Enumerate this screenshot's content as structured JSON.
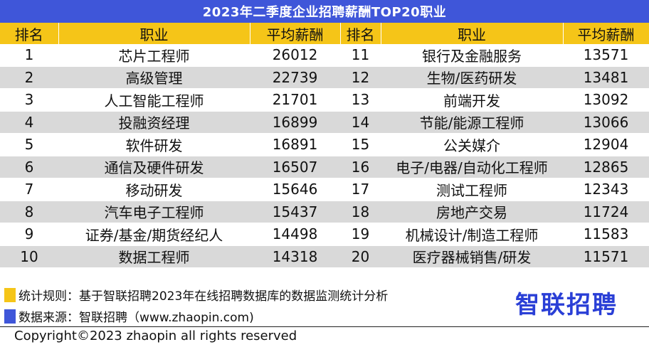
{
  "title": "2023年二季度企业招聘薪酬TOP20职业",
  "colors": {
    "header_blue": "#3f56d9",
    "header_yellow": "#f5c518",
    "stripe_gray": "#d9d9d9",
    "logo_blue": "#2a3fd6"
  },
  "chart_data": {
    "type": "table",
    "title": "2023年二季度企业招聘薪酬TOP20职业",
    "columns": [
      "排名",
      "职业",
      "平均薪酬",
      "排名",
      "职业",
      "平均薪酬"
    ],
    "rows": [
      [
        "1",
        "芯片工程师",
        "26012",
        "11",
        "银行及金融服务",
        "13571"
      ],
      [
        "2",
        "高级管理",
        "22739",
        "12",
        "生物/医药研发",
        "13481"
      ],
      [
        "3",
        "人工智能工程师",
        "21701",
        "13",
        "前端开发",
        "13092"
      ],
      [
        "4",
        "投融资经理",
        "16899",
        "14",
        "节能/能源工程师",
        "13066"
      ],
      [
        "5",
        "软件研发",
        "16891",
        "15",
        "公关媒介",
        "12904"
      ],
      [
        "6",
        "通信及硬件研发",
        "16507",
        "16",
        "电子/电器/自动化工程师",
        "12865"
      ],
      [
        "7",
        "移动研发",
        "15646",
        "17",
        "测试工程师",
        "12343"
      ],
      [
        "8",
        "汽车电子工程师",
        "15437",
        "18",
        "房地产交易",
        "11724"
      ],
      [
        "9",
        "证券/基金/期货经纪人",
        "14498",
        "19",
        "机械设计/制造工程师",
        "11583"
      ],
      [
        "10",
        "数据工程师",
        "14318",
        "20",
        "医疗器械销售/研发",
        "11571"
      ]
    ]
  },
  "notes": {
    "rule": "统计规则：基于智联招聘2023年在线招聘数据库的数据监测统计分析",
    "source": "数据来源：智联招聘（www.zhaopin.com)"
  },
  "logo_text": "智联招聘",
  "copyright": "Copyright©2023 zhaopin all rights reserved"
}
